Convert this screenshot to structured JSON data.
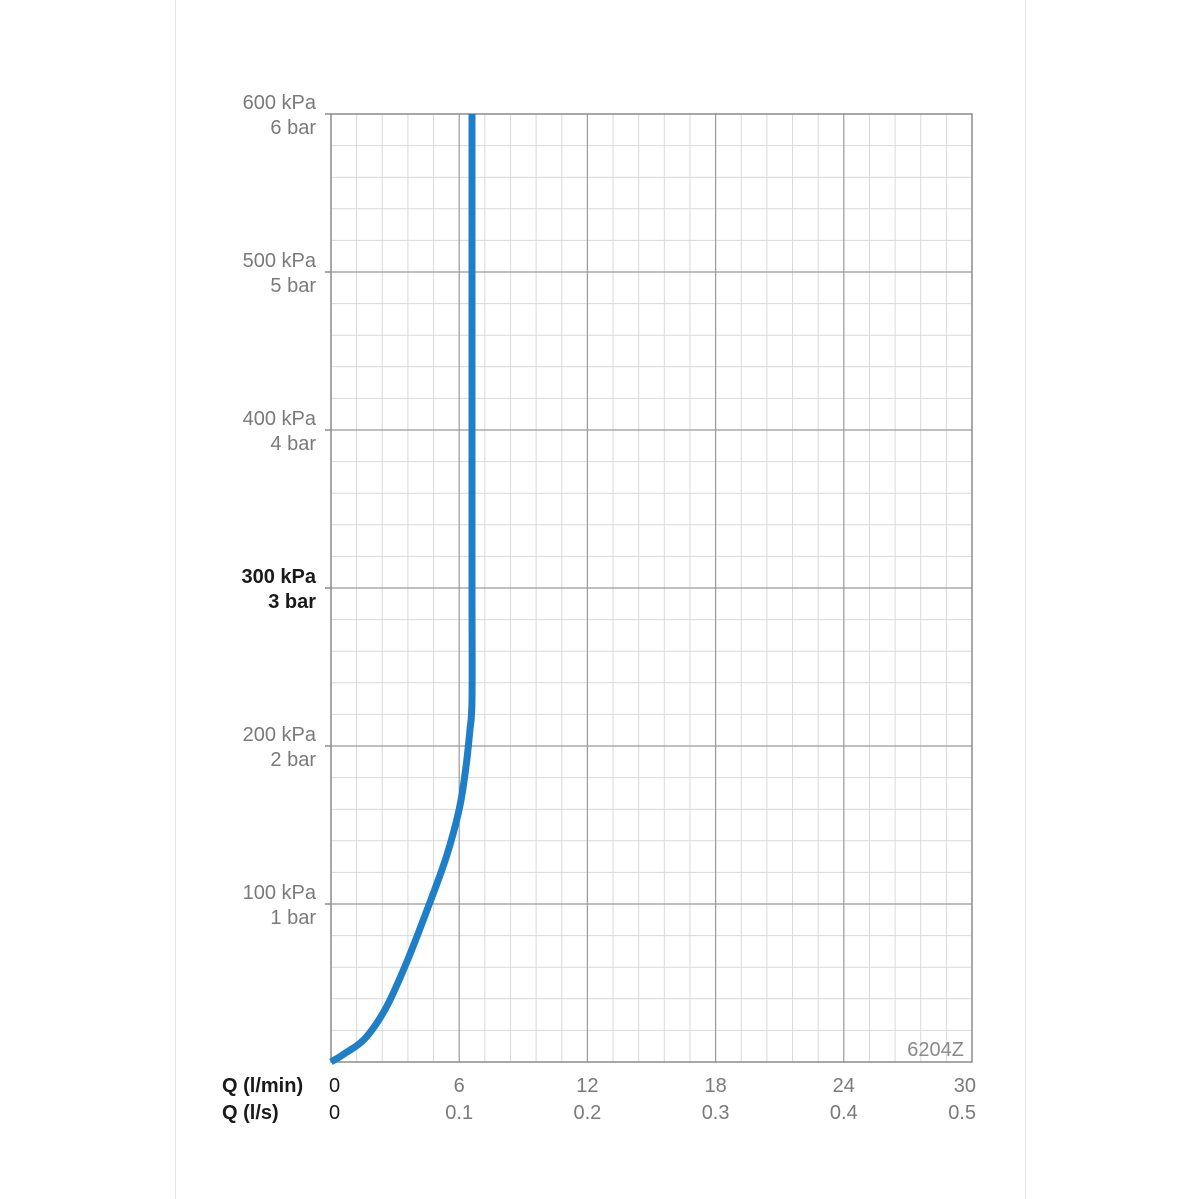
{
  "chart_data": {
    "type": "line",
    "title": "",
    "model_code": "6204Z",
    "xlabel_primary": "Q (l/min)",
    "xlabel_secondary": "Q (l/s)",
    "xlim": [
      0,
      30
    ],
    "ylim": [
      0,
      600
    ],
    "grid": true,
    "x_ticks_primary": [
      "0",
      "6",
      "12",
      "18",
      "24",
      "30"
    ],
    "x_ticks_secondary": [
      "0",
      "0.1",
      "0.2",
      "0.3",
      "0.4",
      "0.5"
    ],
    "y_ticks": [
      {
        "value": 100,
        "kpa": "100 kPa",
        "bar": "1 bar",
        "bold": false
      },
      {
        "value": 200,
        "kpa": "200 kPa",
        "bar": "2 bar",
        "bold": false
      },
      {
        "value": 300,
        "kpa": "300 kPa",
        "bar": "3 bar",
        "bold": true
      },
      {
        "value": 400,
        "kpa": "400 kPa",
        "bar": "4 bar",
        "bold": false
      },
      {
        "value": 500,
        "kpa": "500 kPa",
        "bar": "5 bar",
        "bold": false
      },
      {
        "value": 600,
        "kpa": "600 kPa",
        "bar": "6 bar",
        "bold": false
      }
    ],
    "series": [
      {
        "color": "#1e7fc8",
        "x": [
          0,
          0.6,
          1.6,
          2.6,
          3.6,
          4.6,
          5.4,
          6.0,
          6.3,
          6.5,
          6.6,
          6.6,
          6.6,
          6.6
        ],
        "y": [
          0,
          5,
          15,
          35,
          65,
          100,
          130,
          160,
          185,
          210,
          230,
          300,
          450,
          600
        ]
      }
    ]
  }
}
